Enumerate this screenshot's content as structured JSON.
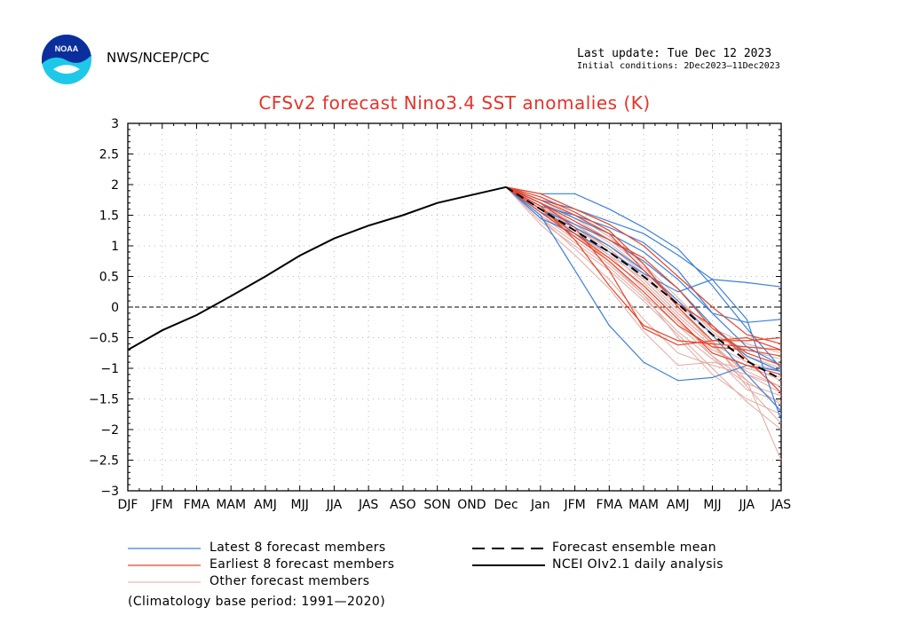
{
  "header": {
    "agency": "NWS/NCEP/CPC",
    "last_update": "Last update: Tue Dec 12 2023",
    "initial_conditions": "Initial conditions: 2Dec2023–11Dec2023",
    "logo_text": "NOAA"
  },
  "colors": {
    "title": "#e8322a",
    "latest": "#3b7fd9",
    "earliest": "#e8452a",
    "other": "#e3a9a2",
    "analysis": "#000000",
    "mean": "#000000"
  },
  "chart_data": {
    "type": "line",
    "title": "CFSv2 forecast Nino3.4 SST anomalies (K)",
    "categories": [
      "DJF",
      "JFM",
      "FMA",
      "MAM",
      "AMJ",
      "MJJ",
      "JJA",
      "JAS",
      "ASO",
      "SON",
      "OND",
      "Dec",
      "Jan",
      "JFM",
      "FMA",
      "MAM",
      "AMJ",
      "MJJ",
      "JJA",
      "JAS"
    ],
    "ylim": [
      -3,
      3
    ],
    "yticks": [
      3,
      2.5,
      2,
      1.5,
      1,
      0.5,
      0,
      -0.5,
      -1,
      -1.5,
      -2,
      -2.5,
      -3
    ],
    "ytick_labels": [
      "3",
      "2.5",
      "2",
      "1.5",
      "1",
      "0.5",
      "0",
      "−0.5",
      "−1",
      "−1.5",
      "−2",
      "−2.5",
      "−3"
    ],
    "analysis": {
      "name": "NCEI OIv2.1 daily analysis",
      "values": [
        -0.7,
        -0.38,
        -0.13,
        0.18,
        0.5,
        0.84,
        1.12,
        1.33,
        1.5,
        1.7,
        1.83,
        1.96
      ]
    },
    "ensemble_mean": {
      "name": "Forecast ensemble mean",
      "start_index": 11,
      "values": [
        1.96,
        1.6,
        1.25,
        0.9,
        0.5,
        0.05,
        -0.45,
        -0.88,
        -1.18
      ]
    },
    "latest_members": {
      "name": "Latest 8 forecast members",
      "start_index": 11,
      "values": [
        [
          1.96,
          1.85,
          1.85,
          1.6,
          1.3,
          0.95,
          0.35,
          -0.35,
          -1.0
        ],
        [
          1.96,
          1.75,
          1.6,
          1.4,
          1.2,
          0.85,
          0.45,
          -0.2,
          -1.85
        ],
        [
          1.96,
          1.5,
          0.6,
          -0.3,
          -0.9,
          -1.2,
          -1.15,
          -0.95,
          -1.05
        ],
        [
          1.96,
          1.45,
          1.2,
          0.9,
          0.55,
          0.25,
          0.45,
          0.4,
          0.33
        ],
        [
          1.96,
          1.65,
          1.5,
          1.3,
          1.05,
          0.6,
          -0.1,
          -0.25,
          -0.2
        ],
        [
          1.96,
          1.55,
          1.3,
          1.0,
          0.6,
          0.1,
          -0.45,
          -1.1,
          -1.7
        ],
        [
          1.96,
          1.6,
          1.35,
          1.1,
          0.75,
          0.3,
          -0.3,
          -0.8,
          -1.05
        ],
        [
          1.96,
          1.7,
          1.45,
          1.2,
          0.9,
          0.45,
          -0.1,
          -0.65,
          -0.95
        ]
      ]
    },
    "earliest_members": {
      "name": "Earliest 8 forecast members",
      "start_index": 11,
      "values": [
        [
          1.96,
          1.7,
          1.3,
          0.6,
          -0.35,
          -0.62,
          -0.55,
          -0.5,
          -0.7
        ],
        [
          1.96,
          1.8,
          1.55,
          1.25,
          0.7,
          0.0,
          -0.55,
          -0.55,
          -0.5
        ],
        [
          1.96,
          1.65,
          1.1,
          0.35,
          -0.3,
          -0.55,
          -0.6,
          -0.65,
          -0.7
        ],
        [
          1.96,
          1.75,
          1.5,
          1.2,
          0.6,
          0.05,
          -0.3,
          -0.85,
          -1.4
        ],
        [
          1.96,
          1.85,
          1.6,
          1.35,
          1.0,
          0.5,
          0.0,
          -0.45,
          -0.6
        ],
        [
          1.96,
          1.6,
          1.2,
          0.8,
          0.35,
          -0.2,
          -0.75,
          -0.95,
          -1.1
        ],
        [
          1.96,
          1.7,
          1.4,
          1.1,
          0.8,
          0.3,
          -0.35,
          -0.75,
          -0.95
        ],
        [
          1.96,
          1.55,
          1.15,
          0.75,
          0.25,
          -0.3,
          -0.65,
          -0.7,
          -0.8
        ]
      ]
    },
    "other_members": {
      "name": "Other forecast members",
      "start_index": 11,
      "values": [
        [
          1.96,
          1.5,
          1.1,
          0.7,
          0.2,
          -0.3,
          -0.8,
          -1.2,
          -1.6
        ],
        [
          1.96,
          1.65,
          1.3,
          0.9,
          0.4,
          -0.15,
          -0.65,
          -1.05,
          -1.3
        ],
        [
          1.96,
          1.4,
          1.0,
          0.6,
          0.1,
          -0.45,
          -1.0,
          -1.55,
          -2.0
        ],
        [
          1.96,
          1.7,
          1.35,
          1.0,
          0.55,
          0.0,
          -0.6,
          -1.2,
          -2.5
        ],
        [
          1.96,
          1.55,
          1.25,
          0.85,
          0.3,
          -0.25,
          -0.7,
          -0.95,
          -1.2
        ],
        [
          1.96,
          1.6,
          1.2,
          0.75,
          0.2,
          -0.5,
          -1.1,
          -1.5,
          -1.75
        ],
        [
          1.96,
          1.8,
          1.5,
          1.15,
          0.7,
          0.15,
          -0.4,
          -0.8,
          -1.0
        ],
        [
          1.96,
          1.45,
          0.95,
          0.45,
          -0.2,
          -0.75,
          -0.95,
          -1.1,
          -1.3
        ],
        [
          1.96,
          1.35,
          0.85,
          0.3,
          -0.4,
          -0.95,
          -0.9,
          -1.0,
          -1.15
        ],
        [
          1.96,
          1.7,
          1.4,
          1.05,
          0.6,
          0.05,
          -0.45,
          -0.7,
          -0.85
        ],
        [
          1.96,
          1.6,
          1.3,
          0.95,
          0.5,
          -0.05,
          -0.55,
          -1.3,
          -1.9
        ],
        [
          1.96,
          1.5,
          1.15,
          0.8,
          0.35,
          -0.2,
          -0.8,
          -1.35,
          -1.55
        ],
        [
          1.96,
          1.75,
          1.45,
          1.1,
          0.65,
          0.1,
          -0.35,
          -0.6,
          -0.75
        ],
        [
          1.96,
          1.55,
          1.2,
          0.85,
          0.45,
          -0.1,
          -0.6,
          -0.9,
          -1.05
        ],
        [
          1.96,
          1.65,
          1.35,
          0.95,
          0.45,
          -0.1,
          -0.6,
          -1.1,
          -1.4
        ],
        [
          1.96,
          1.45,
          1.05,
          0.65,
          0.15,
          -0.4,
          -0.85,
          -1.25,
          -1.45
        ]
      ]
    },
    "legend": {
      "latest": "Latest 8 forecast members",
      "earliest": "Earliest 8 forecast members",
      "other": "Other forecast members",
      "mean": "Forecast ensemble mean",
      "analysis": "NCEI OIv2.1 daily analysis",
      "climatology": "(Climatology base period: 1991—2020)"
    }
  }
}
